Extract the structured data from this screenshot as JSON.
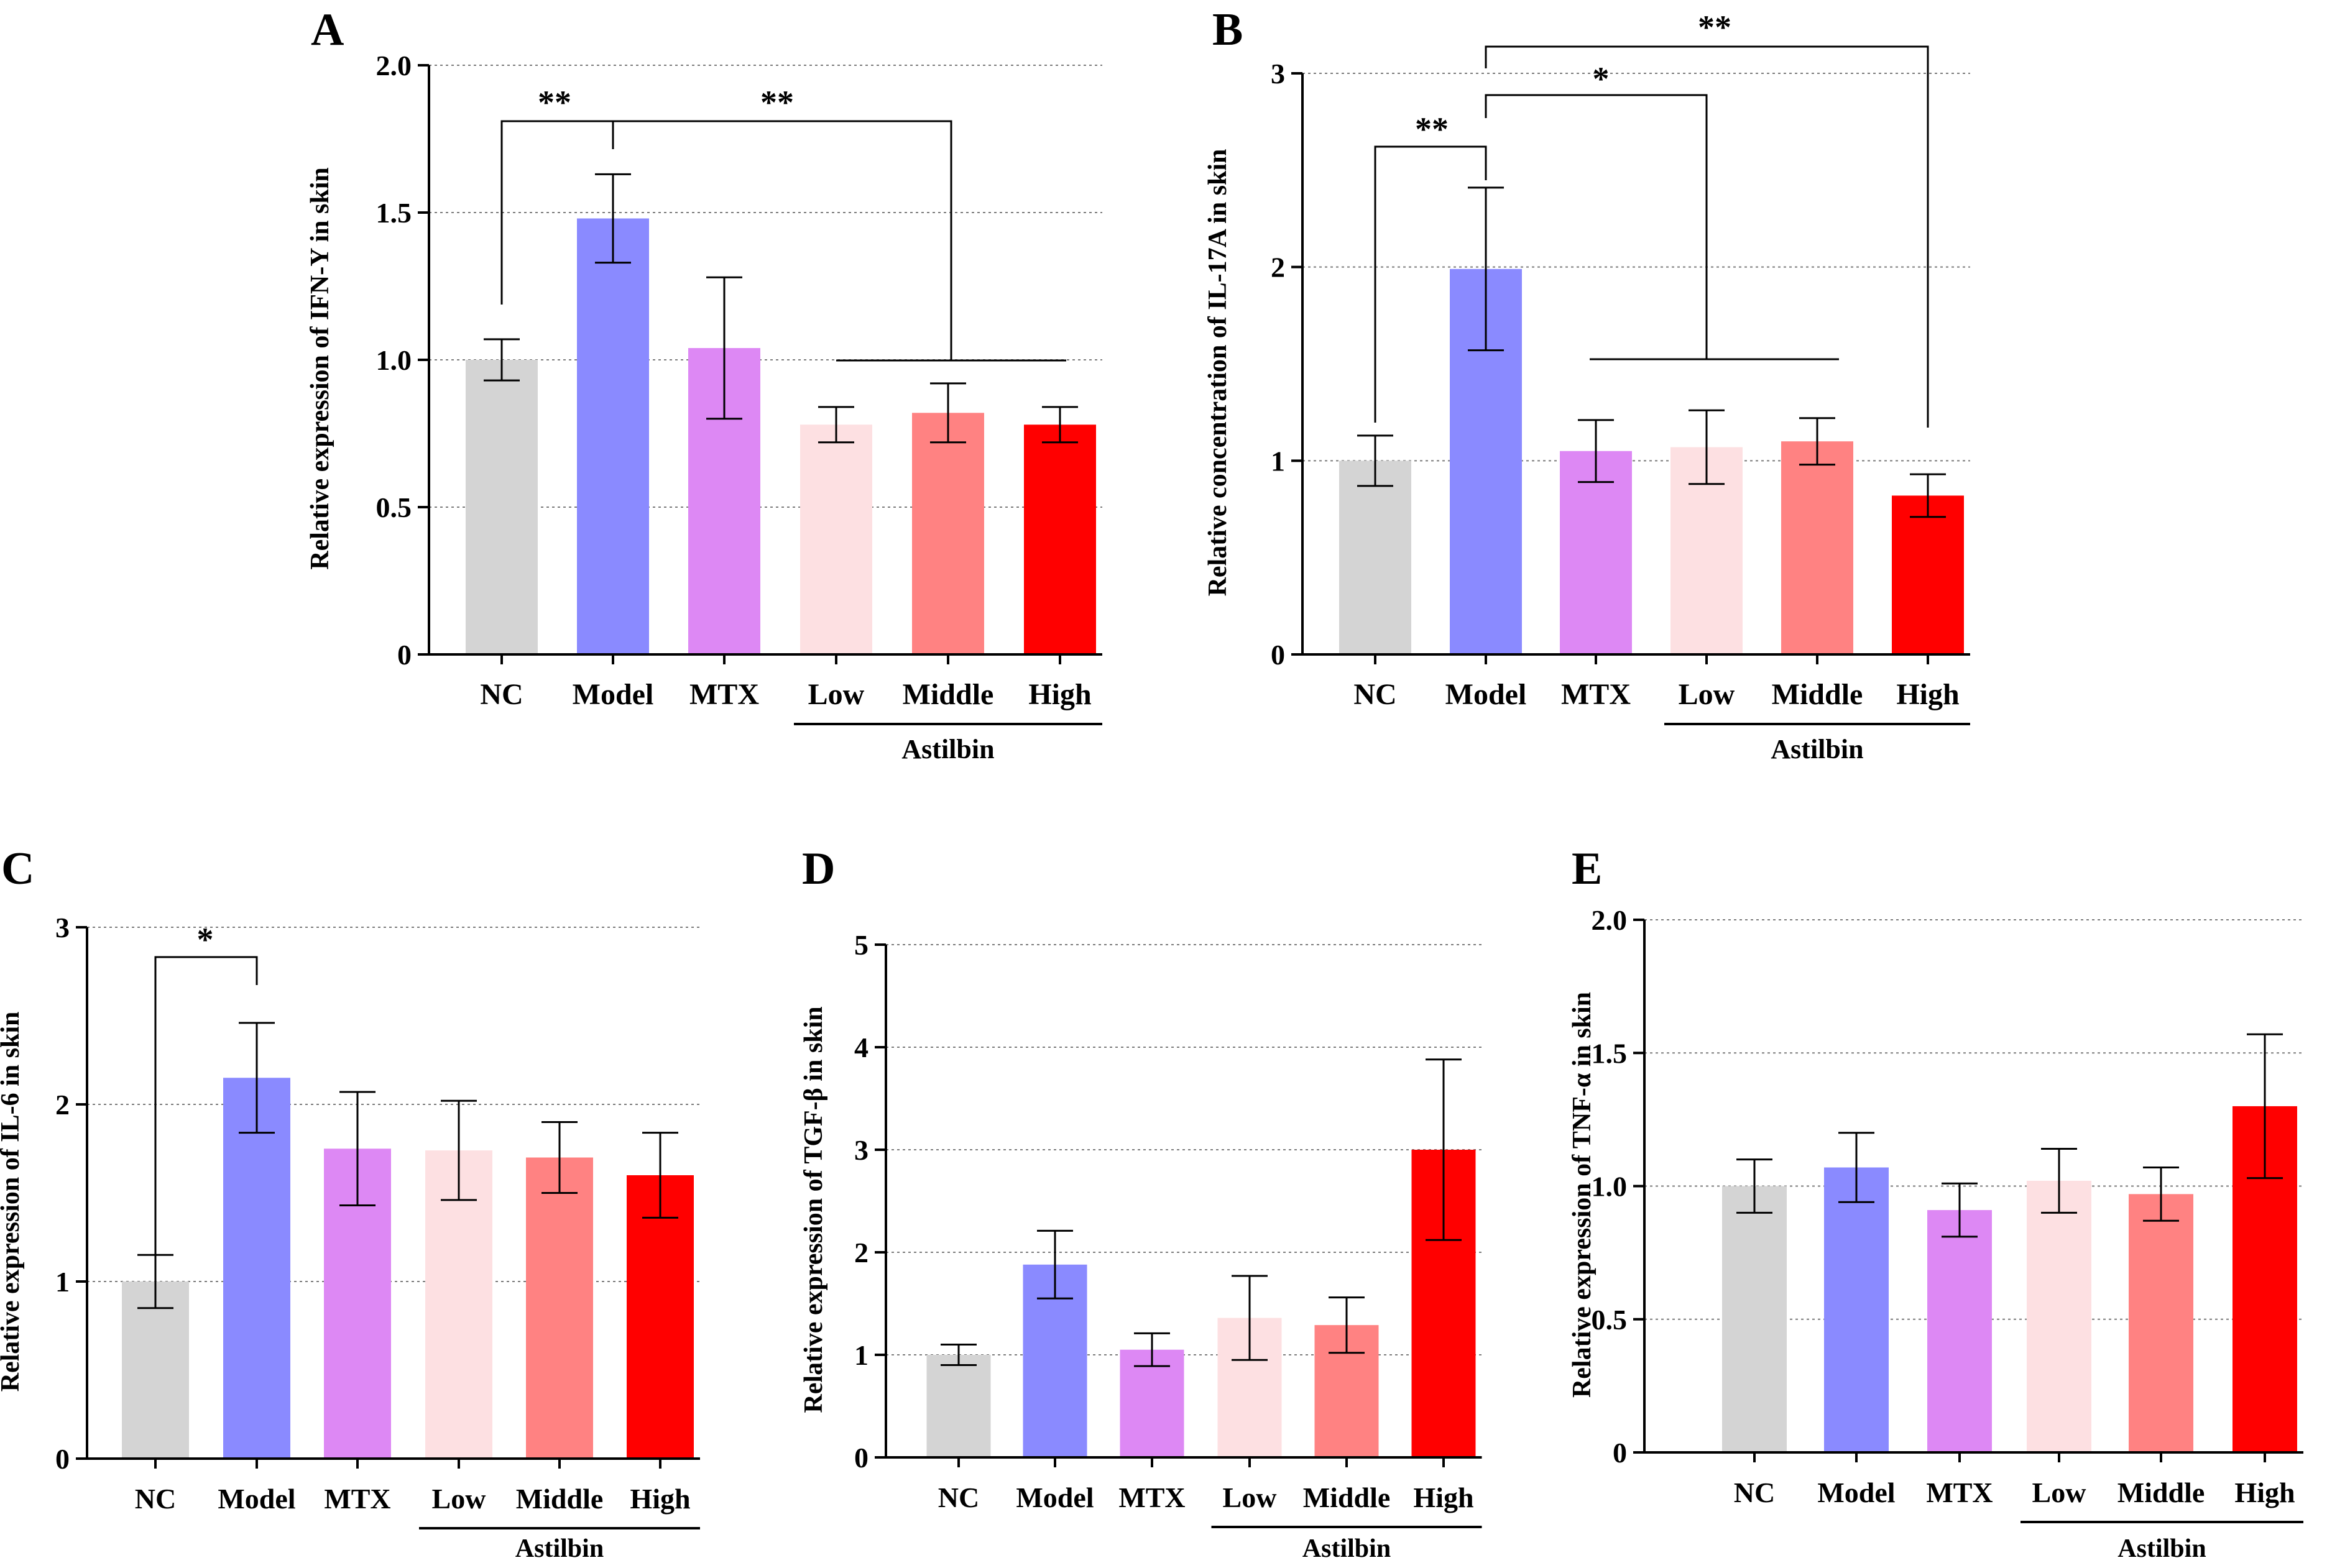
{
  "figure": {
    "group_label": "Astilbin"
  },
  "chart_data": [
    {
      "panel": "A",
      "type": "bar",
      "ylabel": "Relative expression of IFN-Y in skin",
      "categories": [
        "NC",
        "Model",
        "MTX",
        "Low",
        "Middle",
        "High"
      ],
      "values": [
        1.0,
        1.48,
        1.04,
        0.78,
        0.82,
        0.78
      ],
      "errors": [
        0.07,
        0.15,
        0.24,
        0.06,
        0.1,
        0.06
      ],
      "colors": [
        "#d4d4d4",
        "#8a8aff",
        "#dd88f4",
        "#fde0e2",
        "#ff8282",
        "#ff0000"
      ],
      "ylim": [
        0,
        2.0
      ],
      "yticks": [
        0,
        0.5,
        1.0,
        1.5,
        2.0
      ],
      "ytick_labels": [
        "0",
        "0.5",
        "1.0",
        "1.5",
        "2.0"
      ],
      "grid": true,
      "significance": [
        {
          "label": "**",
          "from": 0,
          "to": 1
        },
        {
          "label": "**",
          "from": 1,
          "to": [
            3,
            5
          ]
        }
      ]
    },
    {
      "panel": "B",
      "type": "bar",
      "ylabel": "Relative concentration of IL-17A in skin",
      "categories": [
        "NC",
        "Model",
        "MTX",
        "Low",
        "Middle",
        "High"
      ],
      "values": [
        1.0,
        1.99,
        1.05,
        1.07,
        1.1,
        0.82
      ],
      "errors": [
        0.13,
        0.42,
        0.16,
        0.19,
        0.12,
        0.11
      ],
      "colors": [
        "#d4d4d4",
        "#8a8aff",
        "#dd88f4",
        "#fde0e2",
        "#ff8282",
        "#ff0000"
      ],
      "ylim": [
        0,
        3
      ],
      "yticks": [
        0,
        1,
        2,
        3
      ],
      "ytick_labels": [
        "0",
        "1",
        "2",
        "3"
      ],
      "grid": true,
      "significance": [
        {
          "label": "**",
          "from": 0,
          "to": 1
        },
        {
          "label": "*",
          "from": 1,
          "to": [
            2,
            4
          ]
        },
        {
          "label": "**",
          "from": 1,
          "to": 5
        }
      ]
    },
    {
      "panel": "C",
      "type": "bar",
      "ylabel": "Relative expression of IL-6 in skin",
      "categories": [
        "NC",
        "Model",
        "MTX",
        "Low",
        "Middle",
        "High"
      ],
      "values": [
        1.0,
        2.15,
        1.75,
        1.74,
        1.7,
        1.6
      ],
      "errors": [
        0.15,
        0.31,
        0.32,
        0.28,
        0.2,
        0.24
      ],
      "colors": [
        "#d4d4d4",
        "#8a8aff",
        "#dd88f4",
        "#fde0e2",
        "#ff8282",
        "#ff0000"
      ],
      "ylim": [
        0,
        3
      ],
      "yticks": [
        0,
        1,
        2,
        3
      ],
      "ytick_labels": [
        "0",
        "1",
        "2",
        "3"
      ],
      "grid": true,
      "significance": [
        {
          "label": "*",
          "from": 0,
          "to": 1
        }
      ]
    },
    {
      "panel": "D",
      "type": "bar",
      "ylabel": "Relative expression of TGF-β in skin",
      "categories": [
        "NC",
        "Model",
        "MTX",
        "Low",
        "Middle",
        "High"
      ],
      "values": [
        1.0,
        1.88,
        1.05,
        1.36,
        1.29,
        3.0
      ],
      "errors": [
        0.1,
        0.33,
        0.16,
        0.41,
        0.27,
        0.88
      ],
      "colors": [
        "#d4d4d4",
        "#8a8aff",
        "#dd88f4",
        "#fde0e2",
        "#ff8282",
        "#ff0000"
      ],
      "ylim": [
        0,
        5
      ],
      "yticks": [
        0,
        1,
        2,
        3,
        4,
        5
      ],
      "ytick_labels": [
        "0",
        "1",
        "2",
        "3",
        "4",
        "5"
      ],
      "grid": true,
      "significance": []
    },
    {
      "panel": "E",
      "type": "bar",
      "ylabel": "Relative expression of TNF-α in skin",
      "categories": [
        "NC",
        "Model",
        "MTX",
        "Low",
        "Middle",
        "High"
      ],
      "values": [
        1.0,
        1.07,
        0.91,
        1.02,
        0.97,
        1.3
      ],
      "errors": [
        0.1,
        0.13,
        0.1,
        0.12,
        0.1,
        0.27
      ],
      "colors": [
        "#d4d4d4",
        "#8a8aff",
        "#dd88f4",
        "#fde0e2",
        "#ff8282",
        "#ff0000"
      ],
      "ylim": [
        0,
        2.0
      ],
      "yticks": [
        0,
        0.5,
        1.0,
        1.5,
        2.0
      ],
      "ytick_labels": [
        "0",
        "0.5",
        "1.0",
        "1.5",
        "2.0"
      ],
      "grid": true,
      "significance": []
    }
  ]
}
